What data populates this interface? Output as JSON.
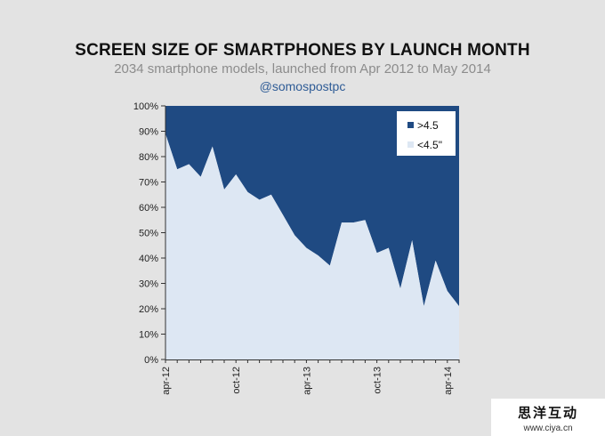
{
  "header": {
    "title": "SCREEN SIZE OF SMARTPHONES BY LAUNCH MONTH",
    "subtitle": "2034 smartphone models, launched from Apr 2012 to May 2014",
    "handle": "@somospostpc"
  },
  "colors": {
    "large": "#1f4a82",
    "small": "#dde7f3",
    "background": "#e3e3e3"
  },
  "watermark": {
    "text": "思洋互动",
    "url": "www.ciya.cn"
  },
  "chart_data": {
    "type": "area",
    "stacked": true,
    "ylim": [
      0,
      100
    ],
    "yticks": [
      "0%",
      "10%",
      "20%",
      "30%",
      "40%",
      "50%",
      "60%",
      "70%",
      "80%",
      "90%",
      "100%"
    ],
    "xtick_labels": [
      {
        "label": "apr-12",
        "index": 0
      },
      {
        "label": "oct-12",
        "index": 6
      },
      {
        "label": "apr-13",
        "index": 12
      },
      {
        "label": "oct-13",
        "index": 18
      },
      {
        "label": "apr-14",
        "index": 24
      }
    ],
    "x": [
      "apr-12",
      "may-12",
      "jun-12",
      "jul-12",
      "aug-12",
      "sep-12",
      "oct-12",
      "nov-12",
      "dec-12",
      "jan-13",
      "feb-13",
      "mar-13",
      "apr-13",
      "may-13",
      "jun-13",
      "jul-13",
      "aug-13",
      "sep-13",
      "oct-13",
      "nov-13",
      "dec-13",
      "jan-14",
      "feb-14",
      "mar-14",
      "apr-14",
      "may-14"
    ],
    "series": [
      {
        "name": "<4.5\"",
        "values": [
          89,
          75,
          77,
          72,
          84,
          67,
          73,
          66,
          63,
          65,
          57,
          49,
          44,
          41,
          37,
          54,
          54,
          55,
          42,
          44,
          28,
          47,
          21,
          39,
          27,
          21
        ]
      },
      {
        "name": ">4.5",
        "values": [
          11,
          25,
          23,
          28,
          16,
          33,
          27,
          34,
          37,
          35,
          43,
          51,
          56,
          59,
          63,
          46,
          46,
          45,
          58,
          56,
          72,
          53,
          79,
          61,
          73,
          79
        ]
      }
    ],
    "legend": {
      "position": "top-right",
      "entries": [
        ">4.5",
        "<4.5\""
      ]
    },
    "grid": false
  }
}
